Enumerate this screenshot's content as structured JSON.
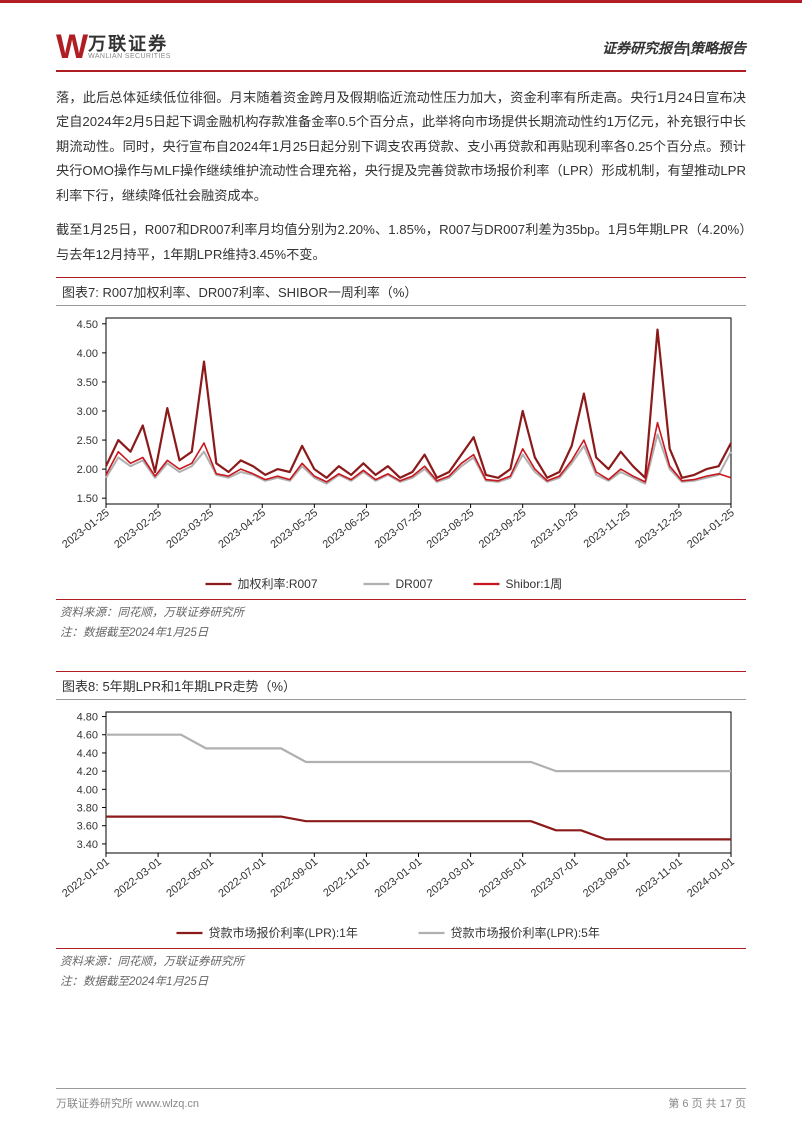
{
  "header": {
    "logo_cn": "万联证券",
    "logo_en": "WANLIAN SECURITIES",
    "right": "证券研究报告|策略报告"
  },
  "body": {
    "p1": "落，此后总体延续低位徘徊。月末随着资金跨月及假期临近流动性压力加大，资金利率有所走高。央行1月24日宣布决定自2024年2月5日起下调金融机构存款准备金率0.5个百分点，此举将向市场提供长期流动性约1万亿元，补充银行中长期流动性。同时，央行宣布自2024年1月25日起分别下调支农再贷款、支小再贷款和再贴现利率各0.25个百分点。预计央行OMO操作与MLF操作继续维护流动性合理充裕，央行提及完善贷款市场报价利率（LPR）形成机制，有望推动LPR利率下行，继续降低社会融资成本。",
    "p2": "截至1月25日，R007和DR007利率月均值分别为2.20%、1.85%，R007与DR007利差为35bp。1月5年期LPR（4.20%）与去年12月持平，1年期LPR维持3.45%不变。"
  },
  "chart7": {
    "title": "图表7:   R007加权利率、DR007利率、SHIBOR一周利率（%）",
    "type": "line",
    "x_labels": [
      "2023-01-25",
      "2023-02-25",
      "2023-03-25",
      "2023-04-25",
      "2023-05-25",
      "2023-06-25",
      "2023-07-25",
      "2023-08-25",
      "2023-09-25",
      "2023-10-25",
      "2023-11-25",
      "2023-12-25",
      "2024-01-25"
    ],
    "y_ticks": [
      1.5,
      2.0,
      2.5,
      3.0,
      3.5,
      4.0,
      4.5
    ],
    "ylim": [
      1.4,
      4.6
    ],
    "series": [
      {
        "name": "加权利率:R007",
        "color": "#8b1a1a",
        "width": 2.2,
        "values": [
          2.05,
          2.5,
          2.3,
          2.75,
          1.95,
          3.05,
          2.15,
          2.3,
          3.85,
          2.1,
          1.95,
          2.15,
          2.05,
          1.9,
          2.0,
          1.95,
          2.4,
          2.0,
          1.85,
          2.05,
          1.9,
          2.1,
          1.9,
          2.05,
          1.85,
          1.95,
          2.25,
          1.85,
          1.95,
          2.25,
          2.55,
          1.9,
          1.85,
          2.0,
          3.0,
          2.2,
          1.85,
          1.95,
          2.4,
          3.3,
          2.2,
          2.0,
          2.3,
          2.05,
          1.85,
          4.4,
          2.35,
          1.85,
          1.9,
          2.0,
          2.05,
          2.45
        ]
      },
      {
        "name": "DR007",
        "color": "#b0b0b0",
        "width": 2.0,
        "values": [
          1.85,
          2.2,
          2.05,
          2.15,
          1.85,
          2.1,
          1.95,
          2.05,
          2.3,
          1.9,
          1.85,
          1.95,
          1.9,
          1.8,
          1.85,
          1.8,
          2.05,
          1.85,
          1.75,
          1.9,
          1.8,
          1.95,
          1.8,
          1.9,
          1.78,
          1.85,
          2.0,
          1.78,
          1.85,
          2.05,
          2.2,
          1.8,
          1.78,
          1.85,
          2.25,
          1.95,
          1.78,
          1.85,
          2.1,
          2.4,
          1.9,
          1.8,
          1.95,
          1.85,
          1.75,
          2.6,
          2.0,
          1.78,
          1.8,
          1.85,
          1.9,
          2.3
        ]
      },
      {
        "name": "Shibor:1周",
        "color": "#c8171e",
        "width": 1.6,
        "values": [
          1.9,
          2.3,
          2.1,
          2.2,
          1.88,
          2.15,
          2.0,
          2.1,
          2.45,
          1.92,
          1.88,
          2.0,
          1.92,
          1.82,
          1.88,
          1.82,
          2.1,
          1.88,
          1.78,
          1.92,
          1.82,
          1.98,
          1.82,
          1.92,
          1.8,
          1.88,
          2.05,
          1.8,
          1.88,
          2.1,
          2.25,
          1.82,
          1.8,
          1.88,
          2.35,
          2.0,
          1.8,
          1.88,
          2.15,
          2.5,
          1.95,
          1.82,
          2.0,
          1.88,
          1.78,
          2.8,
          2.05,
          1.8,
          1.82,
          1.88,
          1.92,
          1.85
        ]
      }
    ],
    "legend_labels": [
      "加权利率:R007",
      "DR007",
      "Shibor:1周"
    ],
    "background_color": "#ffffff",
    "border_color": "#000000",
    "tick_fontsize": 11,
    "source": "资料来源：同花顺，万联证券研究所",
    "note": "注：数据截至2024年1月25日"
  },
  "chart8": {
    "title": "图表8:   5年期LPR和1年期LPR走势（%）",
    "type": "step-line",
    "x_labels": [
      "2022-01-01",
      "2022-03-01",
      "2022-05-01",
      "2022-07-01",
      "2022-09-01",
      "2022-11-01",
      "2023-01-01",
      "2023-03-01",
      "2023-05-01",
      "2023-07-01",
      "2023-09-01",
      "2023-11-01",
      "2024-01-01"
    ],
    "y_ticks": [
      3.4,
      3.6,
      3.8,
      4.0,
      4.2,
      4.4,
      4.6,
      4.8
    ],
    "ylim": [
      3.3,
      4.85
    ],
    "series": [
      {
        "name": "贷款市场报价利率(LPR):1年",
        "color": "#8b1a1a",
        "width": 2.2,
        "values": [
          3.7,
          3.7,
          3.7,
          3.7,
          3.7,
          3.7,
          3.7,
          3.7,
          3.65,
          3.65,
          3.65,
          3.65,
          3.65,
          3.65,
          3.65,
          3.65,
          3.65,
          3.65,
          3.55,
          3.55,
          3.45,
          3.45,
          3.45,
          3.45,
          3.45,
          3.45
        ]
      },
      {
        "name": "贷款市场报价利率(LPR):5年",
        "color": "#b0b0b0",
        "width": 2.2,
        "values": [
          4.6,
          4.6,
          4.6,
          4.6,
          4.45,
          4.45,
          4.45,
          4.45,
          4.3,
          4.3,
          4.3,
          4.3,
          4.3,
          4.3,
          4.3,
          4.3,
          4.3,
          4.3,
          4.2,
          4.2,
          4.2,
          4.2,
          4.2,
          4.2,
          4.2,
          4.2
        ]
      }
    ],
    "legend_labels": [
      "贷款市场报价利率(LPR):1年",
      "贷款市场报价利率(LPR):5年"
    ],
    "background_color": "#ffffff",
    "border_color": "#000000",
    "tick_fontsize": 11,
    "source": "资料来源：同花顺，万联证券研究所",
    "note": "注：数据截至2024年1月25日"
  },
  "footer": {
    "left": "万联证券研究所   www.wlzq.cn",
    "right": "第 6 页 共 17 页"
  }
}
